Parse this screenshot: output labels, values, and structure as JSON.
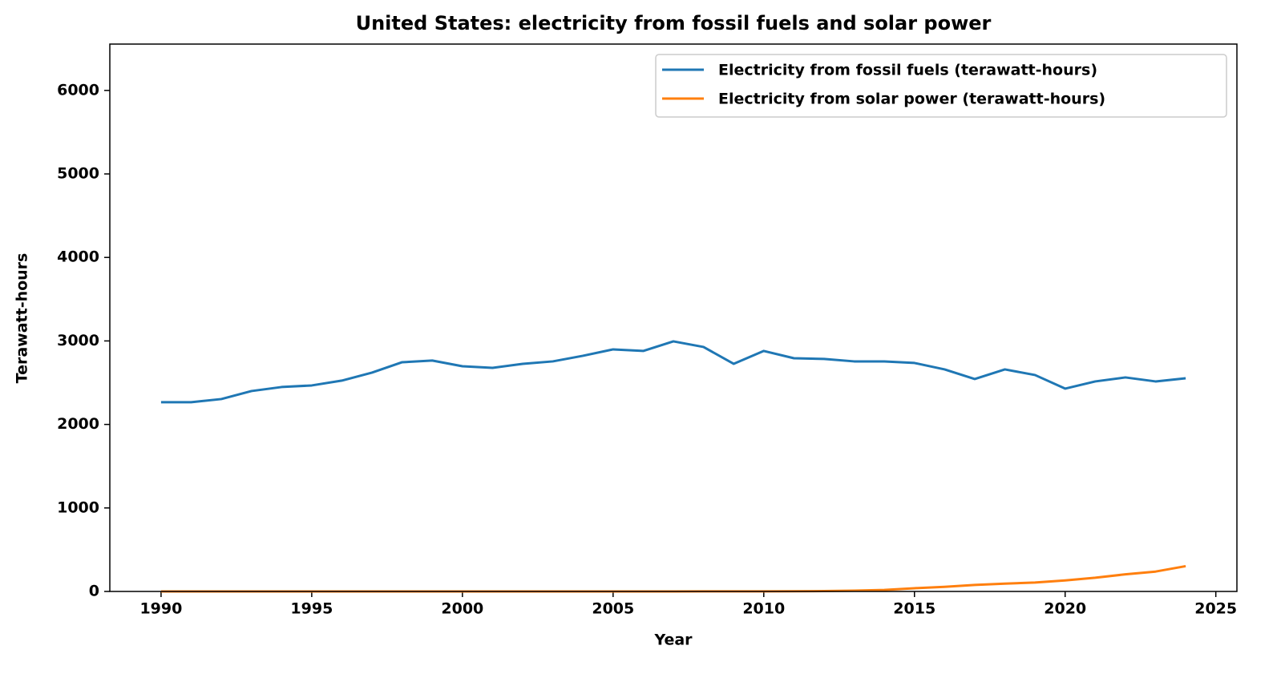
{
  "chart_data": {
    "type": "line",
    "title": "United States: electricity from fossil fuels and solar power",
    "xlabel": "Year",
    "ylabel": "Terawatt-hours",
    "x": [
      1990,
      1991,
      1992,
      1993,
      1994,
      1995,
      1996,
      1997,
      1998,
      1999,
      2000,
      2001,
      2002,
      2003,
      2004,
      2005,
      2006,
      2007,
      2008,
      2009,
      2010,
      2011,
      2012,
      2013,
      2014,
      2015,
      2016,
      2017,
      2018,
      2019,
      2020,
      2021,
      2022,
      2023,
      2024
    ],
    "series": [
      {
        "name": "Electricity from fossil fuels (terawatt-hours)",
        "color": "#1f77b4",
        "values": [
          2266,
          2266,
          2304,
          2400,
          2448,
          2467,
          2525,
          2621,
          2745,
          2765,
          2697,
          2678,
          2726,
          2755,
          2822,
          2899,
          2880,
          2995,
          2928,
          2726,
          2880,
          2793,
          2784,
          2755,
          2755,
          2736,
          2659,
          2544,
          2659,
          2592,
          2429,
          2515,
          2563,
          2515,
          2553
        ]
      },
      {
        "name": "Electricity from solar power (terawatt-hours)",
        "color": "#ff7f0e",
        "values": [
          0.4,
          0.5,
          0.5,
          0.5,
          0.5,
          0.5,
          0.5,
          0.5,
          0.5,
          0.5,
          0.5,
          0.5,
          0.6,
          0.5,
          0.6,
          0.6,
          0.5,
          0.6,
          0.9,
          0.9,
          1.2,
          1.8,
          4.3,
          9,
          18,
          39,
          55,
          78,
          94,
          107,
          132,
          164,
          205,
          238,
          303
        ]
      }
    ],
    "xlim": [
      1988.3,
      2025.7
    ],
    "ylim": [
      0,
      6555
    ],
    "xticks": [
      1990,
      1995,
      2000,
      2005,
      2010,
      2015,
      2020,
      2025
    ],
    "yticks": [
      0,
      1000,
      2000,
      3000,
      4000,
      5000,
      6000
    ],
    "legend": "upper right",
    "grid": false
  }
}
